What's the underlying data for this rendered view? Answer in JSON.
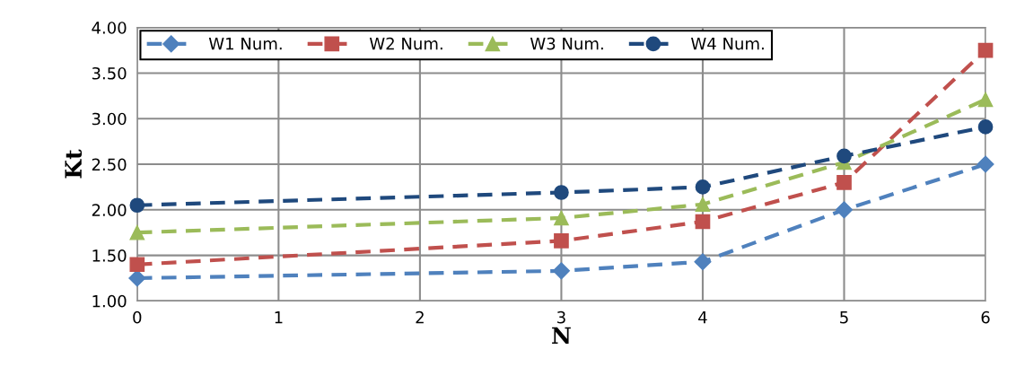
{
  "chart_data": {
    "type": "line",
    "xlabel": "N",
    "ylabel": "Kt",
    "x": [
      0,
      3,
      4,
      5,
      6
    ],
    "series": [
      {
        "name": "W1 Num.",
        "color": "#4f81bd",
        "marker": "diamond",
        "values": [
          1.25,
          1.33,
          1.43,
          2.0,
          2.5
        ]
      },
      {
        "name": "W2 Num.",
        "color": "#c0504d",
        "marker": "square",
        "values": [
          1.4,
          1.66,
          1.87,
          2.3,
          3.75
        ]
      },
      {
        "name": "W3 Num.",
        "color": "#9bbb59",
        "marker": "triangle",
        "values": [
          1.75,
          1.91,
          2.06,
          2.52,
          3.21
        ]
      },
      {
        "name": "W4 Num.",
        "color": "#1f497d",
        "marker": "circle",
        "values": [
          2.05,
          2.19,
          2.25,
          2.59,
          2.91
        ]
      }
    ],
    "xlim": [
      0,
      6
    ],
    "xticks": [
      0,
      1,
      2,
      3,
      4,
      5,
      6
    ],
    "ylim": [
      1.0,
      4.0
    ],
    "yticks": [
      {
        "value": 1,
        "label": "1.00"
      },
      {
        "value": 1.5,
        "label": "1.50"
      },
      {
        "value": 2,
        "label": "2.00"
      },
      {
        "value": 2.5,
        "label": "2.50"
      },
      {
        "value": 3,
        "label": "3.00"
      },
      {
        "value": 3.5,
        "label": "3.50"
      },
      {
        "value": 4,
        "label": "4.00"
      }
    ],
    "grid": true,
    "legend": "top",
    "line_style": "dashed"
  }
}
